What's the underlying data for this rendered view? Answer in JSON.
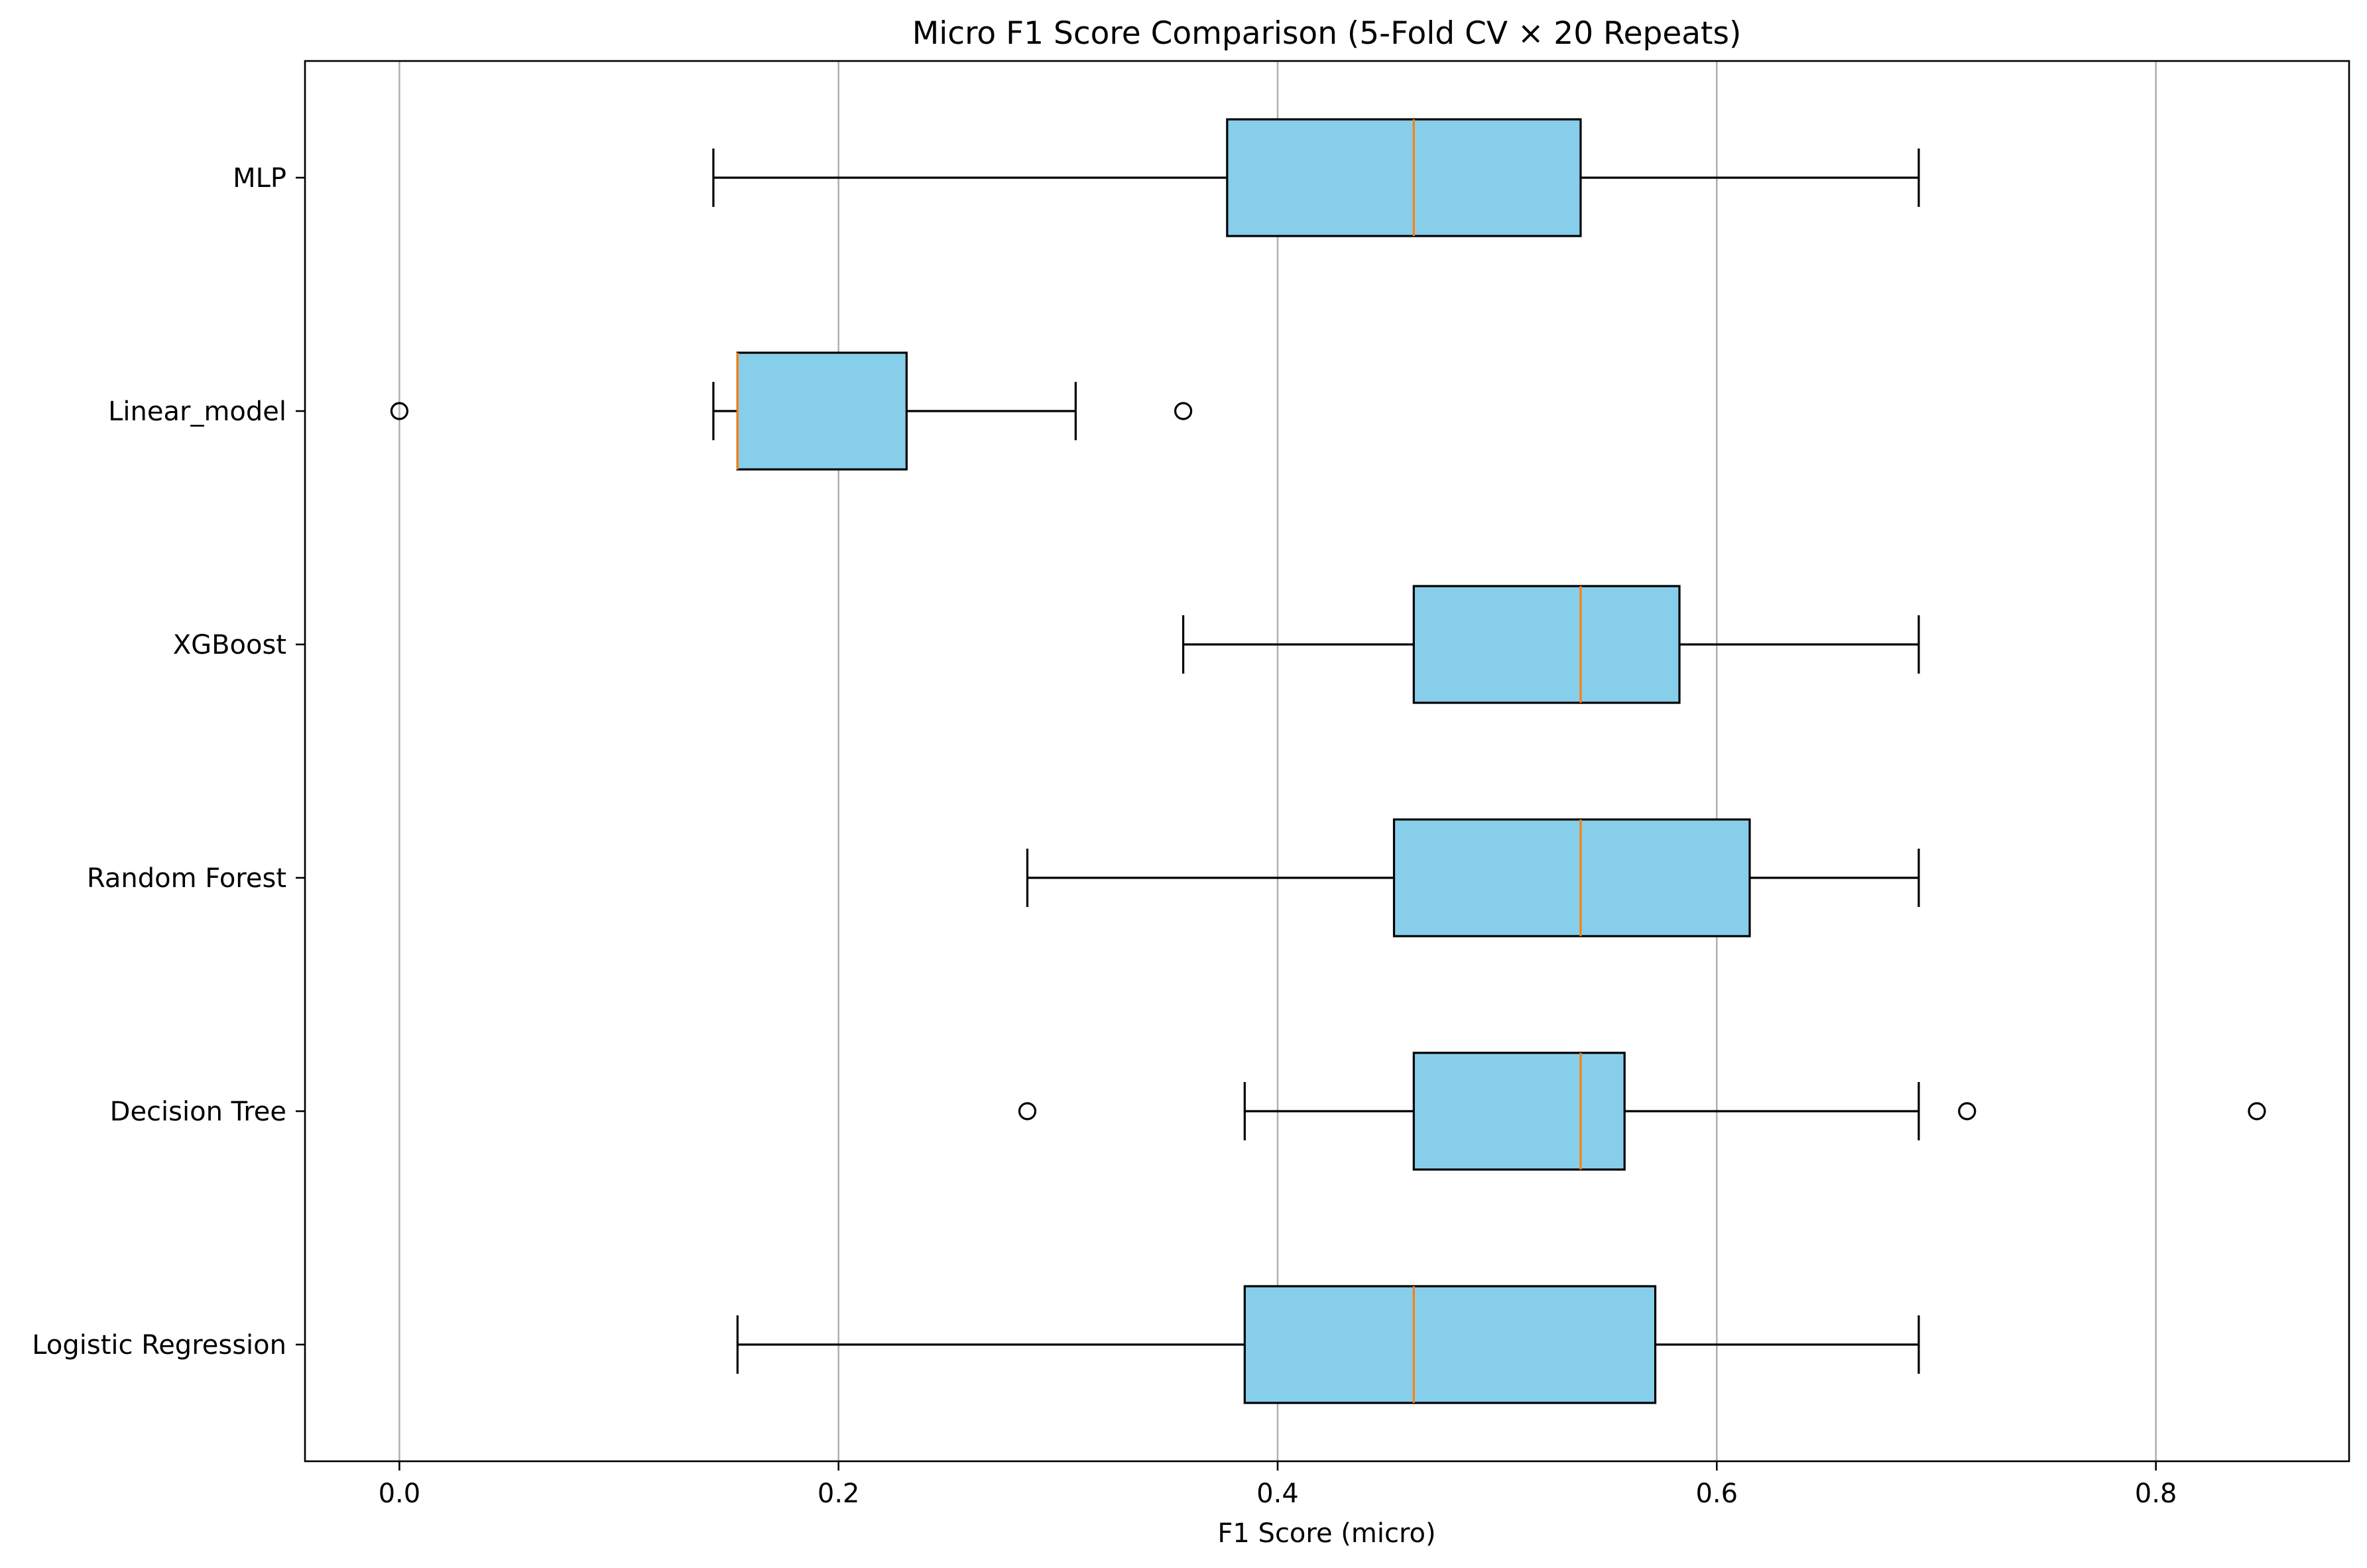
{
  "chart_data": {
    "type": "boxplot",
    "orientation": "horizontal",
    "title": "Micro F1 Score Comparison (5-Fold CV × 20 Repeats)",
    "xlabel": "F1 Score (micro)",
    "ylabel": "",
    "xlim": [
      -0.043,
      0.888
    ],
    "xticks": [
      0.0,
      0.2,
      0.4,
      0.6,
      0.8
    ],
    "xtick_labels": [
      "0.0",
      "0.2",
      "0.4",
      "0.6",
      "0.8"
    ],
    "grid": "x-axis vertical lines",
    "categories": [
      "Logistic Regression",
      "Decision Tree",
      "Random Forest",
      "XGBoost",
      "Linear_model",
      "MLP"
    ],
    "series": [
      {
        "name": "Logistic Regression",
        "whislo": 0.154,
        "q1": 0.385,
        "median": 0.462,
        "q3": 0.572,
        "whishi": 0.692,
        "fliers": []
      },
      {
        "name": "Decision Tree",
        "whislo": 0.385,
        "q1": 0.462,
        "median": 0.538,
        "q3": 0.558,
        "whishi": 0.692,
        "fliers": [
          0.286,
          0.714,
          0.846
        ]
      },
      {
        "name": "Random Forest",
        "whislo": 0.286,
        "q1": 0.453,
        "median": 0.538,
        "q3": 0.615,
        "whishi": 0.692,
        "fliers": []
      },
      {
        "name": "XGBoost",
        "whislo": 0.357,
        "q1": 0.462,
        "median": 0.538,
        "q3": 0.583,
        "whishi": 0.692,
        "fliers": []
      },
      {
        "name": "Linear_model",
        "whislo": 0.143,
        "q1": 0.154,
        "median": 0.154,
        "q3": 0.231,
        "whishi": 0.308,
        "fliers": [
          0.0,
          0.357
        ]
      },
      {
        "name": "MLP",
        "whislo": 0.143,
        "q1": 0.377,
        "median": 0.462,
        "q3": 0.538,
        "whishi": 0.692,
        "fliers": []
      }
    ],
    "colors": {
      "box_fill": "#87ceeb",
      "box_edge": "#000000",
      "median": "#ff7f0e",
      "grid": "#b0b0b0"
    }
  }
}
